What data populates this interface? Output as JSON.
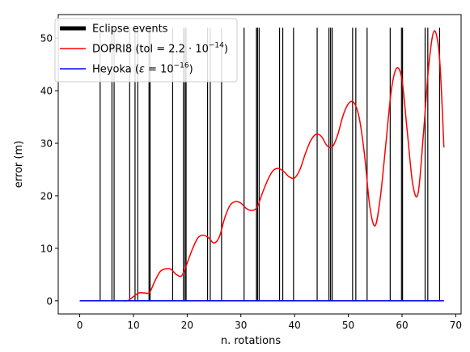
{
  "chart_data": {
    "type": "line",
    "title": "",
    "xlabel": "n. rotations",
    "ylabel": "error (m)",
    "xlim": [
      -4,
      71
    ],
    "ylim": [
      -2.5,
      54.5
    ],
    "x_ticks": [
      0,
      10,
      20,
      30,
      40,
      50,
      60,
      70
    ],
    "y_ticks": [
      0,
      10,
      20,
      30,
      40,
      50
    ],
    "grid": false,
    "legend_position": "top-left",
    "legend": [
      {
        "key": "eclipse",
        "label": "Eclipse events",
        "color": "#000000"
      },
      {
        "key": "dopri8",
        "label_prefix": "DOPRI8 (tol",
        "label_mid": " = 2.2 · 10",
        "label_sup": "−14",
        "label_suffix": ")",
        "color": "#ff0000"
      },
      {
        "key": "heyoka",
        "label_prefix": "Heyoka (",
        "label_eps": "ε",
        "label_mid": " = 10",
        "label_sup": "−16",
        "label_suffix": ")",
        "color": "#0000ff"
      }
    ],
    "eclipse_events": {
      "name": "Eclipse events",
      "color": "#000000",
      "y_top": 52,
      "y_bottom": 0,
      "x": [
        3.8,
        6.0,
        6.4,
        9.3,
        10.3,
        10.8,
        12.9,
        13.1,
        17.3,
        19.3,
        19.6,
        19.8,
        23.8,
        24.3,
        26.4,
        30.6,
        32.9,
        33.1,
        33.4,
        37.2,
        37.8,
        39.8,
        44.2,
        46.4,
        46.7,
        47.0,
        50.8,
        51.4,
        53.5,
        57.8,
        59.9,
        60.1,
        64.3,
        64.8,
        67.0
      ]
    },
    "series": [
      {
        "name": "DOPRI8 (tol = 2.2 · 10^−14)",
        "color": "#ff0000",
        "x": [
          0,
          2,
          4,
          6,
          8,
          9,
          10,
          11,
          12,
          13,
          14,
          15,
          16,
          17,
          18,
          19,
          20,
          21,
          22,
          23,
          24,
          25,
          26,
          27,
          28,
          29,
          30,
          31,
          32,
          33,
          34,
          35,
          36,
          37,
          38,
          39,
          40,
          41,
          42,
          43,
          44,
          45,
          46,
          47,
          48,
          49,
          50,
          51,
          52,
          53,
          54,
          55,
          56,
          57,
          58,
          59,
          60,
          61,
          62,
          63,
          64,
          65,
          66,
          67,
          67.8
        ],
        "y": [
          0,
          0,
          0,
          0,
          0,
          0.05,
          0.8,
          1.5,
          1.5,
          1.6,
          3.8,
          5.6,
          6.1,
          6.0,
          5.0,
          4.8,
          7.2,
          9.9,
          12.0,
          12.5,
          12.0,
          11.0,
          12.2,
          15.8,
          18.2,
          18.9,
          18.6,
          17.6,
          17.2,
          17.8,
          20.5,
          23.0,
          24.8,
          25.2,
          24.6,
          23.6,
          23.4,
          25.0,
          28.0,
          30.5,
          31.7,
          31.3,
          29.6,
          29.3,
          31.5,
          35.2,
          37.5,
          37.8,
          35.0,
          28.0,
          18.0,
          14.3,
          20.0,
          30.0,
          40.0,
          44.3,
          42.0,
          32.0,
          22.2,
          20.5,
          32.0,
          45.0,
          51.4,
          46.0,
          29.2
        ]
      },
      {
        "name": "Heyoka (ε = 10^−16)",
        "color": "#0000ff",
        "x": [
          0,
          67.8
        ],
        "y": [
          0,
          0
        ]
      }
    ]
  }
}
